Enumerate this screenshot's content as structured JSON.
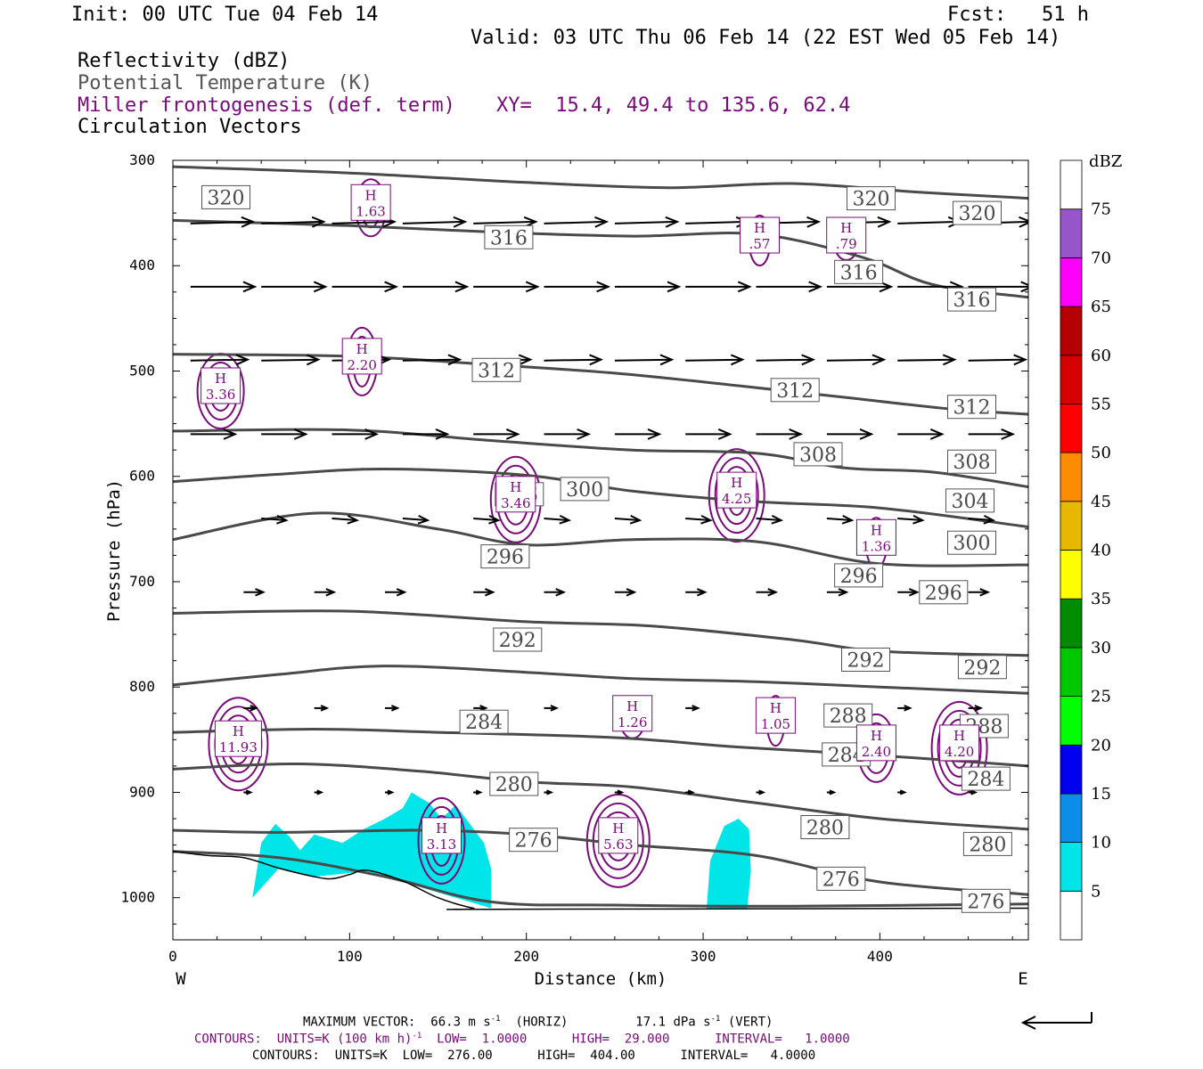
{
  "header": {
    "init": "Init: 00 UTC Tue 04 Feb 14",
    "fcst": "Fcst:   51 h",
    "valid": "Valid: 03 UTC Thu 06 Feb 14 (22 EST Wed 05 Feb 14)",
    "line1": "Reflectivity (dBZ)",
    "line2": "Potential Temperature (K)",
    "line3": "Miller frontogenesis (def. term)",
    "xy": "XY=  15.4, 49.4 to 135.6, 62.4",
    "line4": "Circulation Vectors"
  },
  "footer": {
    "max_vector_a": "MAXIMUM VECTOR:  66.3 m s",
    "max_vector_b": "(HORIZ)",
    "max_vector_c": "17.1 dPa s",
    "max_vector_d": "(VERT)",
    "contours1_a": "CONTOURS:  UNITS=K (100 km h)",
    "contours1_b": "LOW=  1.0000      HIGH=  29.000      INTERVAL=   1.0000",
    "contours2": "CONTOURS:  UNITS=K  LOW=  276.00      HIGH=  404.00      INTERVAL=   4.0000",
    "exp": "-1"
  },
  "colors": {
    "theta": "#4a4a4a",
    "fronto": "#7a0a7a",
    "refl_fill": "#00e5e8",
    "vector": "#000000"
  },
  "chart_data": {
    "type": "cross-section",
    "xlabel": "Distance (km)",
    "ylabel": "Pressure (hPa)",
    "xlim": [
      0,
      484
    ],
    "ylim": [
      1040,
      300
    ],
    "x_ticks": [
      "0",
      "100",
      "200",
      "300",
      "400"
    ],
    "y_ticks": [
      "300",
      "400",
      "500",
      "600",
      "700",
      "800",
      "900",
      "1000"
    ],
    "x_left_label": "W",
    "x_right_label": "E",
    "theta_contours": [
      {
        "label": "320",
        "points": [
          [
            0,
            306
          ],
          [
            100,
            312
          ],
          [
            200,
            321
          ],
          [
            280,
            326
          ],
          [
            350,
            322
          ],
          [
            420,
            330
          ],
          [
            484,
            336
          ]
        ]
      },
      {
        "label": "316",
        "points": [
          [
            0,
            357
          ],
          [
            100,
            362
          ],
          [
            180,
            368
          ],
          [
            260,
            372
          ],
          [
            330,
            370
          ],
          [
            390,
            392
          ],
          [
            430,
            418
          ],
          [
            484,
            430
          ]
        ]
      },
      {
        "label": "312",
        "points": [
          [
            0,
            484
          ],
          [
            100,
            486
          ],
          [
            180,
            494
          ],
          [
            250,
            502
          ],
          [
            320,
            514
          ],
          [
            380,
            525
          ],
          [
            440,
            536
          ],
          [
            484,
            541
          ]
        ]
      },
      {
        "label": "308",
        "points": [
          [
            0,
            557
          ],
          [
            100,
            556
          ],
          [
            180,
            566
          ],
          [
            260,
            575
          ],
          [
            330,
            578
          ],
          [
            380,
            592
          ],
          [
            430,
            596
          ],
          [
            484,
            610
          ]
        ]
      },
      {
        "label": "304",
        "points": [
          [
            0,
            605
          ],
          [
            60,
            598
          ],
          [
            120,
            593
          ],
          [
            200,
            599
          ],
          [
            260,
            614
          ],
          [
            330,
            624
          ],
          [
            400,
            630
          ],
          [
            484,
            648
          ]
        ]
      },
      {
        "label": "300",
        "points": [
          [
            0,
            660
          ],
          [
            80,
            635
          ],
          [
            150,
            650
          ],
          [
            200,
            665
          ],
          [
            260,
            660
          ],
          [
            330,
            662
          ],
          [
            400,
            683
          ],
          [
            484,
            684
          ]
        ]
      },
      {
        "label": "296",
        "points": [
          [
            0,
            730
          ],
          [
            100,
            728
          ],
          [
            200,
            738
          ],
          [
            270,
            742
          ],
          [
            350,
            755
          ],
          [
            400,
            766
          ],
          [
            484,
            770
          ]
        ]
      },
      {
        "label": "292",
        "points": [
          [
            0,
            798
          ],
          [
            60,
            788
          ],
          [
            120,
            780
          ],
          [
            200,
            786
          ],
          [
            260,
            792
          ],
          [
            330,
            795
          ],
          [
            400,
            800
          ],
          [
            484,
            806
          ]
        ]
      },
      {
        "label": "288",
        "points": [
          [
            0,
            843
          ],
          [
            80,
            840
          ],
          [
            150,
            843
          ],
          [
            250,
            848
          ],
          [
            320,
            857
          ],
          [
            400,
            865
          ],
          [
            484,
            875
          ]
        ]
      },
      {
        "label": "284",
        "points": [
          [
            0,
            878
          ],
          [
            70,
            873
          ],
          [
            140,
            880
          ],
          [
            200,
            890
          ],
          [
            260,
            895
          ],
          [
            330,
            910
          ],
          [
            400,
            925
          ],
          [
            484,
            935
          ]
        ]
      },
      {
        "label": "280",
        "points": [
          [
            0,
            936
          ],
          [
            60,
            938
          ],
          [
            140,
            936
          ],
          [
            200,
            940
          ],
          [
            260,
            950
          ],
          [
            330,
            960
          ],
          [
            400,
            985
          ],
          [
            484,
            997
          ]
        ]
      },
      {
        "label": "276",
        "points": [
          [
            0,
            956
          ],
          [
            60,
            962
          ],
          [
            120,
            980
          ],
          [
            180,
            1004
          ],
          [
            250,
            1007
          ],
          [
            350,
            1008
          ],
          [
            484,
            1006
          ]
        ]
      }
    ],
    "theta_label_positions": [
      {
        "label": "320",
        "x": 30,
        "p": 335
      },
      {
        "label": "320",
        "x": 395,
        "p": 336
      },
      {
        "label": "320",
        "x": 455,
        "p": 350
      },
      {
        "label": "316",
        "x": 190,
        "p": 373
      },
      {
        "label": "316",
        "x": 388,
        "p": 406
      },
      {
        "label": "316",
        "x": 452,
        "p": 432
      },
      {
        "label": "312",
        "x": 183,
        "p": 499
      },
      {
        "label": "312",
        "x": 352,
        "p": 518
      },
      {
        "label": "312",
        "x": 452,
        "p": 534
      },
      {
        "label": "308",
        "x": 365,
        "p": 579
      },
      {
        "label": "308",
        "x": 452,
        "p": 586
      },
      {
        "label": "304",
        "x": 451,
        "p": 623
      },
      {
        "label": "306",
        "x": 196,
        "p": 617
      },
      {
        "label": "300",
        "x": 233,
        "p": 612
      },
      {
        "label": "300",
        "x": 452,
        "p": 663
      },
      {
        "label": "296",
        "x": 188,
        "p": 676
      },
      {
        "label": "296",
        "x": 388,
        "p": 694
      },
      {
        "label": "296",
        "x": 436,
        "p": 710
      },
      {
        "label": "292",
        "x": 195,
        "p": 755
      },
      {
        "label": "292",
        "x": 392,
        "p": 774
      },
      {
        "label": "292",
        "x": 458,
        "p": 781
      },
      {
        "label": "288",
        "x": 382,
        "p": 827
      },
      {
        "label": "288",
        "x": 459,
        "p": 837
      },
      {
        "label": "284",
        "x": 176,
        "p": 833
      },
      {
        "label": "284",
        "x": 381,
        "p": 864
      },
      {
        "label": "284",
        "x": 460,
        "p": 887
      },
      {
        "label": "280",
        "x": 193,
        "p": 892
      },
      {
        "label": "280",
        "x": 369,
        "p": 933
      },
      {
        "label": "280",
        "x": 461,
        "p": 949
      },
      {
        "label": "276",
        "x": 204,
        "p": 945
      },
      {
        "label": "276",
        "x": 378,
        "p": 982
      },
      {
        "label": "276",
        "x": 460,
        "p": 1003
      }
    ],
    "fronto_maxima": [
      {
        "label": "H",
        "value": "1.63",
        "x": 112,
        "p": 340
      },
      {
        "label": "H",
        "value": ".57",
        "x": 332,
        "p": 371
      },
      {
        "label": "H",
        "value": ".79",
        "x": 381,
        "p": 371
      },
      {
        "label": "H",
        "value": "2.20",
        "x": 107,
        "p": 486
      },
      {
        "label": "H",
        "value": "3.36",
        "x": 27,
        "p": 514
      },
      {
        "label": "H",
        "value": "3.46",
        "x": 194,
        "p": 617
      },
      {
        "label": "H",
        "value": "4.25",
        "x": 319,
        "p": 613
      },
      {
        "label": "H",
        "value": "1.36",
        "x": 398,
        "p": 658
      },
      {
        "label": "H",
        "value": "1.26",
        "x": 260,
        "p": 825
      },
      {
        "label": "H",
        "value": "1.05",
        "x": 341,
        "p": 827
      },
      {
        "label": "H",
        "value": "11.93",
        "x": 37,
        "p": 849
      },
      {
        "label": "H",
        "value": "2.40",
        "x": 398,
        "p": 853
      },
      {
        "label": "H",
        "value": "4.20",
        "x": 445,
        "p": 853
      },
      {
        "label": "H",
        "value": "3.13",
        "x": 152,
        "p": 941
      },
      {
        "label": "H",
        "value": "5.63",
        "x": 252,
        "p": 941
      }
    ],
    "colorbar": {
      "title": "dBZ",
      "levels": [
        "5",
        "10",
        "15",
        "20",
        "25",
        "30",
        "35",
        "40",
        "45",
        "50",
        "55",
        "60",
        "65",
        "70",
        "75"
      ],
      "colors": [
        "#ffffff",
        "#00e5e8",
        "#0a8ee8",
        "#0000f0",
        "#00ff00",
        "#00c800",
        "#008c00",
        "#ffff00",
        "#e6b800",
        "#ff8c00",
        "#ff0000",
        "#d60000",
        "#b40000",
        "#ff00ff",
        "#9655c8",
        "#ffffff"
      ]
    },
    "vector_rows": [
      {
        "p": 360,
        "xs": [
          10,
          50,
          90,
          130,
          170,
          210,
          250,
          290,
          330,
          370,
          410,
          450
        ],
        "dx": 35,
        "dp": -2
      },
      {
        "p": 420,
        "xs": [
          10,
          50,
          90,
          130,
          170,
          210,
          250,
          290,
          330,
          370,
          410,
          450
        ],
        "dx": 36,
        "dp": 0
      },
      {
        "p": 490,
        "xs": [
          10,
          50,
          90,
          130,
          170,
          210,
          250,
          290,
          330,
          370,
          410,
          450
        ],
        "dx": 32,
        "dp": -1
      },
      {
        "p": 560,
        "xs": [
          10,
          50,
          90,
          130,
          170,
          210,
          250,
          290,
          330,
          370,
          410,
          450
        ],
        "dx": 25,
        "dp": 0
      },
      {
        "p": 640,
        "xs": [
          50,
          90,
          130,
          170,
          210,
          250,
          290,
          330,
          370,
          410,
          450
        ],
        "dx": 14,
        "dp": 2
      },
      {
        "p": 710,
        "xs": [
          40,
          80,
          120,
          170,
          210,
          250,
          290,
          330,
          370,
          410,
          450
        ],
        "dx": 11,
        "dp": 0
      },
      {
        "p": 820,
        "xs": [
          40,
          80,
          120,
          170,
          210,
          250,
          290,
          330,
          370,
          410,
          450
        ],
        "dx": 7,
        "dp": 0
      },
      {
        "p": 900,
        "xs": [
          40,
          80,
          120,
          170,
          210,
          250,
          290,
          330,
          370,
          410,
          450
        ],
        "dx": 4,
        "dp": 0
      }
    ],
    "terrain": [
      [
        0,
        956
      ],
      [
        20,
        960
      ],
      [
        40,
        962
      ],
      [
        60,
        972
      ],
      [
        80,
        980
      ],
      [
        90,
        982
      ],
      [
        100,
        978
      ],
      [
        110,
        974
      ],
      [
        130,
        984
      ],
      [
        150,
        1000
      ],
      [
        170,
        1010
      ],
      [
        180,
        1011
      ],
      [
        484,
        1010
      ]
    ],
    "reflectivity_regions": [
      {
        "value": 5,
        "points": [
          [
            45,
            1000
          ],
          [
            50,
            948
          ],
          [
            58,
            930
          ],
          [
            66,
            942
          ],
          [
            72,
            955
          ],
          [
            80,
            940
          ],
          [
            96,
            948
          ],
          [
            108,
            935
          ],
          [
            120,
            925
          ],
          [
            130,
            915
          ],
          [
            135,
            900
          ],
          [
            145,
            910
          ],
          [
            152,
            925
          ],
          [
            160,
            912
          ],
          [
            168,
            930
          ],
          [
            176,
            948
          ],
          [
            180,
            972
          ],
          [
            180,
            1010
          ],
          [
            140,
            990
          ],
          [
            110,
            975
          ],
          [
            80,
            980
          ],
          [
            60,
            972
          ]
        ]
      },
      {
        "value": 5,
        "points": [
          [
            302,
            1010
          ],
          [
            304,
            965
          ],
          [
            312,
            932
          ],
          [
            320,
            925
          ],
          [
            326,
            935
          ],
          [
            327,
            975
          ],
          [
            325,
            1010
          ]
        ]
      }
    ]
  }
}
